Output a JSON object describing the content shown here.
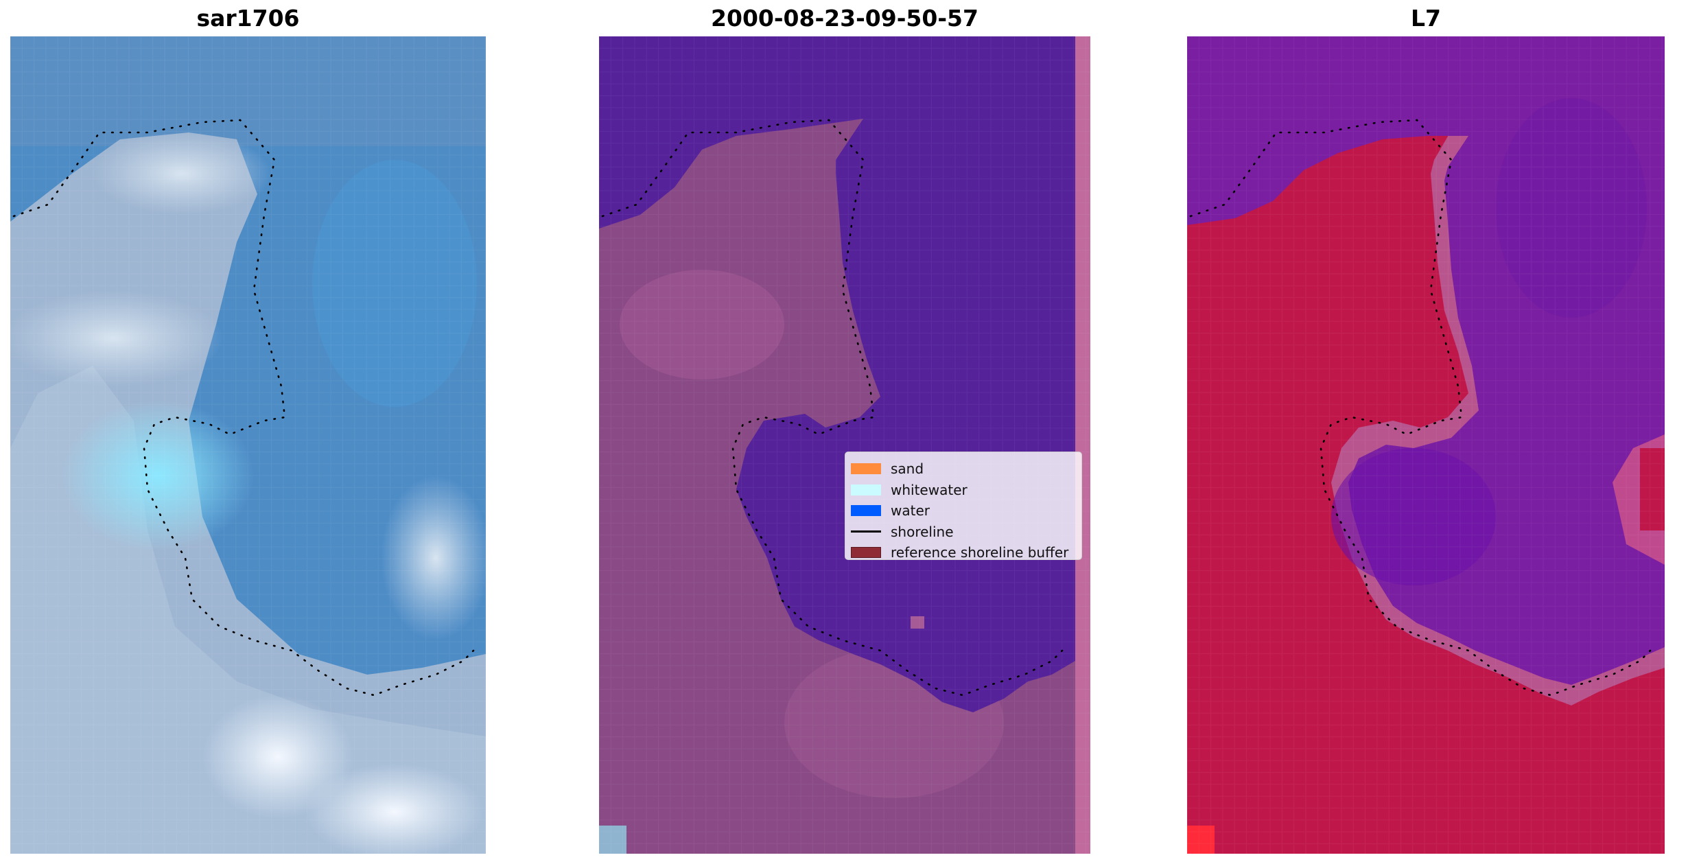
{
  "panels": [
    {
      "title": "sar1706",
      "kind": "rgb"
    },
    {
      "title": "2000-08-23-09-50-57",
      "kind": "classified"
    },
    {
      "title": "L7",
      "kind": "index"
    }
  ],
  "legend": {
    "items": [
      {
        "label": "sand",
        "type": "patch",
        "color": "#ff8c3c"
      },
      {
        "label": "whitewater",
        "type": "patch",
        "color": "#c9fbff"
      },
      {
        "label": "water",
        "type": "patch",
        "color": "#005cff"
      },
      {
        "label": "shoreline",
        "type": "line",
        "color": "#000000"
      },
      {
        "label": "reference shoreline buffer",
        "type": "patch",
        "color": "#8e2b35"
      }
    ]
  },
  "colors": {
    "water_class": "#55229a",
    "land_class": "#8a4a86",
    "index_high": "#c0174a",
    "index_low": "#6a14a6",
    "rgb_water": "#4a90c8",
    "rgb_surf": "#c8dcea"
  }
}
